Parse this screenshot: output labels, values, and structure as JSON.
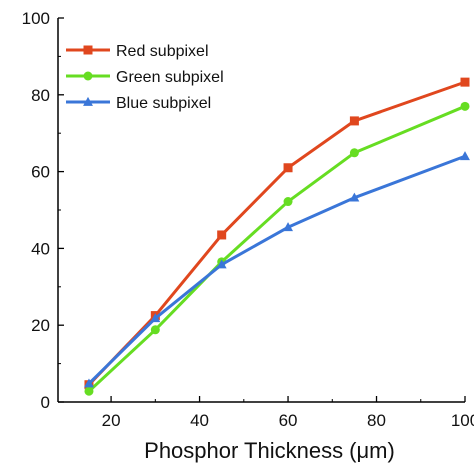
{
  "chart_data": {
    "type": "line",
    "xlabel": "Phosphor Thickness (μm)",
    "ylabel": "",
    "xlim": [
      8,
      100
    ],
    "ylim": [
      0,
      100
    ],
    "xticks": [
      20,
      40,
      60,
      80,
      100
    ],
    "yticks": [
      0,
      20,
      40,
      60,
      80,
      100
    ],
    "xtick_labels": [
      "20",
      "40",
      "60",
      "80",
      "100"
    ],
    "ytick_labels": [
      "0",
      "20",
      "40",
      "60",
      "80",
      "100"
    ],
    "legend_position": "top-left",
    "grid": false,
    "x": [
      15,
      30,
      45,
      60,
      75,
      100
    ],
    "series": [
      {
        "name": "Red subpixel",
        "color": "#e0471e",
        "marker": "square",
        "values": [
          4.5,
          22.5,
          43.5,
          61,
          73.2,
          83.3
        ]
      },
      {
        "name": "Green subpixel",
        "color": "#66dd22",
        "marker": "circle",
        "values": [
          2.8,
          18.8,
          36.5,
          52.2,
          64.9,
          77
        ]
      },
      {
        "name": "Blue subpixel",
        "color": "#3a76d8",
        "marker": "triangle",
        "values": [
          4.8,
          21.8,
          35.8,
          45.5,
          53.2,
          64
        ]
      }
    ]
  }
}
